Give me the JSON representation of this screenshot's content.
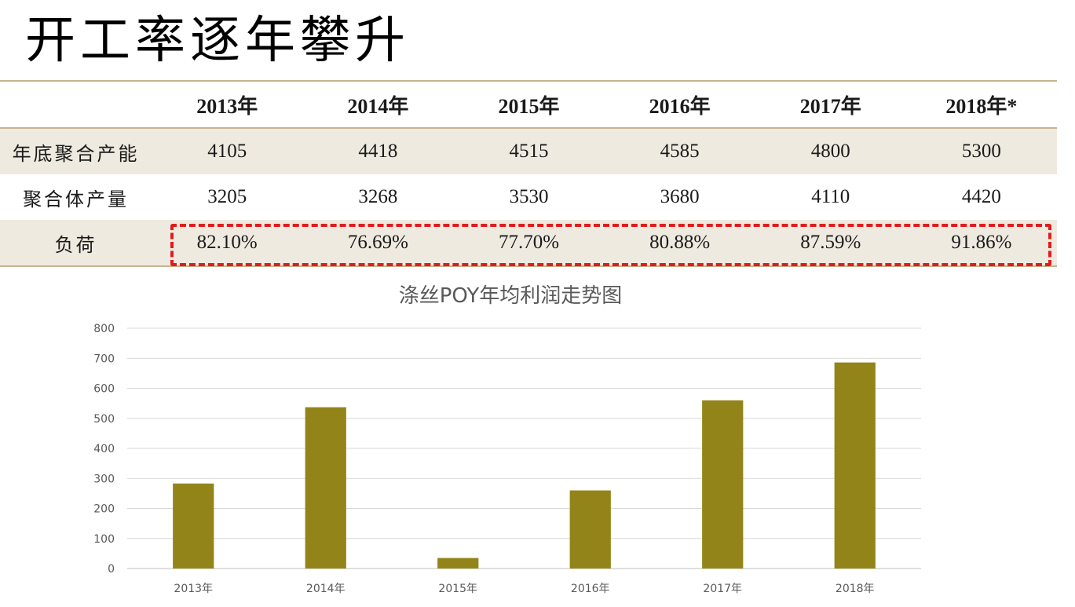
{
  "page": {
    "title": "开工率逐年攀升"
  },
  "table": {
    "headers": [
      "",
      "2013年",
      "2014年",
      "2015年",
      "2016年",
      "2017年",
      "2018年*"
    ],
    "rows": [
      {
        "label": "年底聚合产能",
        "values": [
          "4105",
          "4418",
          "4515",
          "4585",
          "4800",
          "5300"
        ]
      },
      {
        "label": "聚合体产量",
        "values": [
          "3205",
          "3268",
          "3530",
          "3680",
          "4110",
          "4420"
        ]
      },
      {
        "label": "负荷",
        "values": [
          "82.10%",
          "76.69%",
          "77.70%",
          "80.88%",
          "87.59%",
          "91.86%"
        ]
      }
    ]
  },
  "colors": {
    "bar": "#928418",
    "highlight_border": "#e01c1c",
    "row_shade": "#efeae0",
    "rule": "#c4b490"
  },
  "chart_data": {
    "type": "bar",
    "title": "涤丝POY年均利润走势图",
    "categories": [
      "2013年",
      "2014年",
      "2015年",
      "2016年",
      "2017年",
      "2018年"
    ],
    "values": [
      283,
      537,
      35,
      260,
      560,
      686
    ],
    "yticks": [
      "0",
      "100",
      "200",
      "300",
      "400",
      "500",
      "600",
      "700",
      "800"
    ],
    "ylim": [
      0,
      800
    ],
    "grid": true,
    "legend": "none"
  }
}
